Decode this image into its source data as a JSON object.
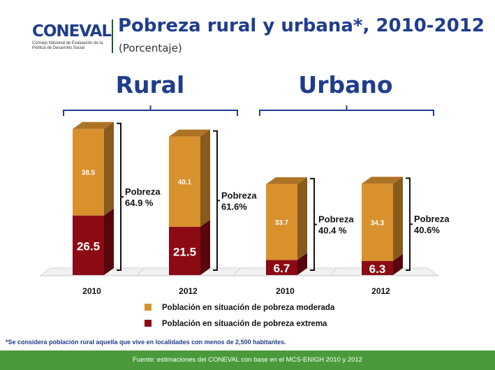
{
  "logo": {
    "word": "CONEVAL",
    "subtitle": "Consejo Nacional de Evaluación de la Política de Desarrollo Social"
  },
  "header": {
    "title": "Pobreza rural y urbana*, 2010-2012",
    "subtitle": "(Porcentaje)"
  },
  "colors": {
    "moderada": "#d9912e",
    "extrema": "#8b0a13",
    "title": "#1f3d8c",
    "footer": "#4a9a3c"
  },
  "chart_data": {
    "type": "bar",
    "stacked": true,
    "groups": [
      "Rural",
      "Urbano"
    ],
    "categories": [
      "2010",
      "2012",
      "2010",
      "2012"
    ],
    "category_groups": [
      "Rural",
      "Rural",
      "Urbano",
      "Urbano"
    ],
    "series": [
      {
        "name": "Población en situación de pobreza extrema",
        "values": [
          26.5,
          21.5,
          6.7,
          6.3
        ]
      },
      {
        "name": "Población en situación de pobreza  moderada",
        "values": [
          38.5,
          40.1,
          33.7,
          34.3
        ]
      }
    ],
    "value_labels": {
      "extrema": [
        "26.5",
        "21.5",
        "6.7",
        "6.3"
      ],
      "moderada": [
        "38.5",
        "40.1",
        "33.7",
        "34.3"
      ]
    },
    "totals": [
      {
        "label": "Pobreza",
        "value": "64.9 %"
      },
      {
        "label": "Pobreza",
        "value": "61.6%"
      },
      {
        "label": "Pobreza",
        "value": "40.4 %"
      },
      {
        "label": "Pobreza",
        "value": "40.6%"
      }
    ],
    "legend_position": "bottom"
  },
  "footnote": "*Se considera población rural aquella que vive en localidades con menos de 2,500 habitantes.",
  "footer": "Fuente: estimaciones del CONEVAL con base en el MCS-ENIGH 2010 y 2012"
}
